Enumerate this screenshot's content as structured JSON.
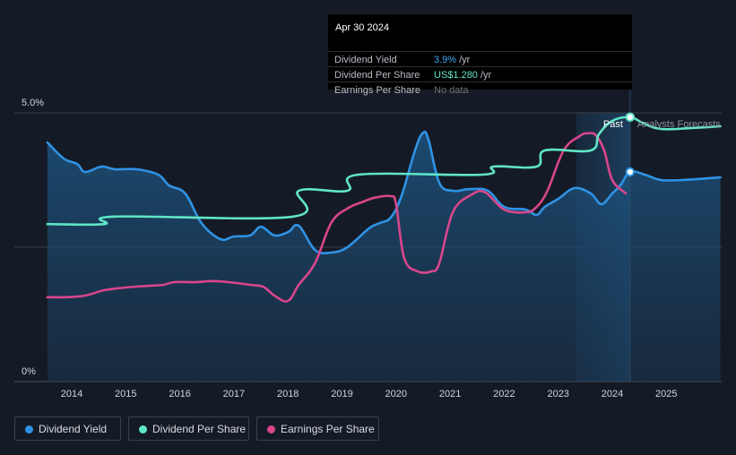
{
  "tooltip": {
    "date": "Apr 30 2024",
    "rows": [
      {
        "label": "Dividend Yield",
        "value": "3.9%",
        "unit": "/yr",
        "color": "#3ba7f0"
      },
      {
        "label": "Dividend Per Share",
        "value": "US$1.280",
        "unit": "/yr",
        "color": "#5fe6c6"
      },
      {
        "label": "Earnings Per Share",
        "value": "No data",
        "unit": "",
        "color": "#6d727a"
      }
    ]
  },
  "legend": [
    {
      "label": "Dividend Yield",
      "color": "#2f93e5"
    },
    {
      "label": "Dividend Per Share",
      "color": "#5fe6c6"
    },
    {
      "label": "Earnings Per Share",
      "color": "#d9468c"
    }
  ],
  "colors": {
    "background": "#151b26",
    "grid": "#3a414c",
    "yield": "#2f93e5",
    "dps": "#5fe6c6",
    "eps": "#d9468c"
  },
  "chart_data": {
    "type": "line",
    "y_tick_labels": [
      "5.0%",
      "0%"
    ],
    "ylim": [
      0,
      5
    ],
    "xlim": [
      2013.55,
      2026
    ],
    "x_tick_labels": [
      "2014",
      "2015",
      "2016",
      "2017",
      "2018",
      "2019",
      "2020",
      "2021",
      "2022",
      "2023",
      "2024",
      "2025"
    ],
    "x_ticks": [
      2014,
      2015,
      2016,
      2017,
      2018,
      2019,
      2020,
      2021,
      2022,
      2023,
      2024,
      2025
    ],
    "past_label": "Past",
    "forecast_label": "Analysts Forecasts",
    "divider_x": 2024.33,
    "forecast_band_start": 2023.33,
    "grid": true,
    "legend_position": "bottom-left",
    "series": [
      {
        "name": "Dividend Yield",
        "key": "yield",
        "fill": true,
        "x": [
          2013.55,
          2013.85,
          2014.1,
          2014.25,
          2014.55,
          2014.8,
          2015.2,
          2015.6,
          2015.8,
          2016.1,
          2016.4,
          2016.75,
          2017,
          2017.3,
          2017.5,
          2017.75,
          2018,
          2018.2,
          2018.5,
          2018.8,
          2019.1,
          2019.5,
          2019.7,
          2019.9,
          2020.1,
          2020.35,
          2020.5,
          2020.6,
          2020.8,
          2021.05,
          2021.35,
          2021.7,
          2022,
          2022.4,
          2022.6,
          2022.75,
          2023,
          2023.3,
          2023.6,
          2023.8,
          2024,
          2024.15,
          2024.33,
          2024.6,
          2024.9,
          2025.3,
          2025.6,
          2026
        ],
        "y": [
          4.45,
          4.15,
          4.05,
          3.9,
          4.0,
          3.95,
          3.95,
          3.85,
          3.65,
          3.5,
          2.95,
          2.65,
          2.7,
          2.72,
          2.88,
          2.72,
          2.78,
          2.9,
          2.45,
          2.4,
          2.5,
          2.85,
          2.95,
          3.05,
          3.45,
          4.3,
          4.63,
          4.5,
          3.7,
          3.55,
          3.58,
          3.55,
          3.25,
          3.2,
          3.1,
          3.25,
          3.4,
          3.6,
          3.5,
          3.3,
          3.5,
          3.65,
          3.9,
          3.85,
          3.75,
          3.75,
          3.77,
          3.8
        ]
      },
      {
        "name": "Dividend Per Share",
        "key": "dps",
        "fill": false,
        "x": [
          2013.55,
          2014.6,
          2014.8,
          2018.1,
          2018.2,
          2019.1,
          2019.3,
          2021.6,
          2021.8,
          2022.6,
          2022.75,
          2023.6,
          2023.75,
          2024.0,
          2024.33,
          2024.55,
          2024.9,
          2025.5,
          2026
        ],
        "y": [
          2.93,
          2.93,
          3.07,
          3.07,
          3.55,
          3.55,
          3.85,
          3.85,
          4.0,
          4.0,
          4.3,
          4.3,
          4.6,
          4.85,
          4.92,
          4.82,
          4.7,
          4.72,
          4.75
        ]
      },
      {
        "name": "Earnings Per Share",
        "key": "eps",
        "fill": false,
        "x": [
          2013.55,
          2013.9,
          2014.25,
          2014.6,
          2015,
          2015.4,
          2015.7,
          2015.9,
          2016.3,
          2016.6,
          2016.9,
          2017.3,
          2017.55,
          2017.75,
          2018,
          2018.2,
          2018.5,
          2018.8,
          2019.1,
          2019.4,
          2019.6,
          2019.9,
          2020.0,
          2020.15,
          2020.4,
          2020.65,
          2020.8,
          2021.05,
          2021.4,
          2021.65,
          2022,
          2022.4,
          2022.6,
          2022.8,
          2023.1,
          2023.4,
          2023.55,
          2023.7,
          2023.85,
          2024.0,
          2024.25
        ],
        "y": [
          1.57,
          1.57,
          1.6,
          1.7,
          1.75,
          1.78,
          1.8,
          1.85,
          1.85,
          1.87,
          1.85,
          1.8,
          1.76,
          1.6,
          1.5,
          1.8,
          2.2,
          2.95,
          3.22,
          3.35,
          3.42,
          3.45,
          3.3,
          2.3,
          2.05,
          2.05,
          2.2,
          3.15,
          3.48,
          3.52,
          3.2,
          3.15,
          3.25,
          3.55,
          4.3,
          4.57,
          4.62,
          4.58,
          4.3,
          3.75,
          3.5
        ]
      }
    ],
    "markers": [
      {
        "series": "yield",
        "x": 2024.33,
        "y": 3.9
      },
      {
        "series": "dps",
        "x": 2024.33,
        "y": 4.92
      }
    ]
  }
}
